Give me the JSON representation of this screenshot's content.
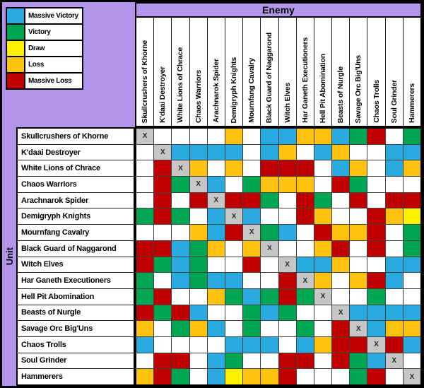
{
  "titles": {
    "enemy_axis": "Enemy",
    "unit_axis": "Unit"
  },
  "legend": [
    {
      "label": "Massive Victory",
      "code": "MV"
    },
    {
      "label": "Victory",
      "code": "V"
    },
    {
      "label": "Draw",
      "code": "D"
    },
    {
      "label": "Loss",
      "code": "L"
    },
    {
      "label": "Massive Loss",
      "code": "ML"
    }
  ],
  "colors": {
    "MV": "#29abe2",
    "V": "#00a651",
    "D": "#fff200",
    "L": "#ffc20e",
    "ML": "#c00000",
    "X": "#c6c6c6",
    "NONE": "#ffffff",
    "background": "#b495eb",
    "grid_line": "#404040"
  },
  "diagonal_marker": "X",
  "chart_data": {
    "type": "heatmap",
    "title": "Unit vs Enemy matchup results",
    "x_label": "Enemy",
    "y_label": "Unit",
    "legend_position": "top-left",
    "value_meanings": {
      "MV": "Massive Victory",
      "V": "Victory",
      "D": "Draw",
      "L": "Loss",
      "ML": "Massive Loss",
      "X": "same unit (diagonal)",
      "": "no result shown"
    },
    "columns": [
      "Skullcrushers of Khorne",
      "K'daai Destroyer",
      "White Lions of Chrace",
      "Chaos Warriors",
      "Arachnarok Spider",
      "Demigryph Knights",
      "Mournfang Cavalry",
      "Black Guard of Naggarond",
      "Witch Elves",
      "Har Ganeth Executioners",
      "Hell Pit Abomination",
      "Beasts of Nurgle",
      "Savage Orc Big'Uns",
      "Chaos Trolls",
      "Soul Grinder",
      "Hammerers"
    ],
    "rows": [
      "Skullcrushers of Khorne",
      "K'daai Destroyer",
      "White Lions of Chrace",
      "Chaos Warriors",
      "Arachnarok Spider",
      "Demigryph Knights",
      "Mournfang Cavalry",
      "Black Guard of Naggarond",
      "Witch Elves",
      "Har Ganeth Executioners",
      "Hell Pit Abomination",
      "Beasts of Nurgle",
      "Savage Orc Big'Uns",
      "Chaos Trolls",
      "Soul Grinder",
      "Hammerers"
    ],
    "values": [
      [
        "X",
        "",
        "",
        "",
        "",
        "L",
        "",
        "MV",
        "MV",
        "L",
        "L",
        "MV",
        "V",
        "ML",
        "",
        "V"
      ],
      [
        "",
        "X",
        "MV",
        "MV",
        "MV",
        "MV",
        "",
        "MV",
        "L",
        "",
        "MV",
        "L",
        "",
        "",
        "MV",
        "MV"
      ],
      [
        "",
        "ML",
        "X",
        "L",
        "",
        "L",
        "",
        "ML",
        "ML",
        "ML",
        "",
        "MV",
        "L",
        "",
        "MV",
        "L"
      ],
      [
        "",
        "ML",
        "V",
        "X",
        "MV",
        "",
        "V",
        "L",
        "L",
        "L",
        "",
        "ML",
        "V",
        "",
        "",
        ""
      ],
      [
        "",
        "ML",
        "",
        "ML",
        "X",
        "ML",
        "ML",
        "V",
        "",
        "ML",
        "V",
        "",
        "ML",
        "",
        "ML",
        "ML"
      ],
      [
        "V",
        "ML",
        "V",
        "",
        "MV",
        "X",
        "MV",
        "",
        "",
        "ML",
        "L",
        "",
        "",
        "ML",
        "L",
        "D"
      ],
      [
        "",
        "",
        "",
        "L",
        "MV",
        "ML",
        "X",
        "V",
        "MV",
        "",
        "ML",
        "L",
        "L",
        "ML",
        "",
        "V"
      ],
      [
        "ML",
        "ML",
        "MV",
        "V",
        "L",
        "",
        "L",
        "X",
        "",
        "",
        "L",
        "ML",
        "",
        "ML",
        "",
        "V"
      ],
      [
        "ML",
        "V",
        "MV",
        "V",
        "",
        "",
        "ML",
        "",
        "X",
        "MV",
        "MV",
        "L",
        "",
        "",
        "MV",
        "MV"
      ],
      [
        "V",
        "",
        "MV",
        "V",
        "MV",
        "MV",
        "",
        "",
        "ML",
        "X",
        "L",
        "",
        "L",
        "ML",
        "MV",
        ""
      ],
      [
        "V",
        "ML",
        "",
        "",
        "L",
        "V",
        "MV",
        "V",
        "ML",
        "V",
        "X",
        "",
        "",
        "V",
        "",
        ""
      ],
      [
        "ML",
        "V",
        "ML",
        "MV",
        "",
        "",
        "V",
        "MV",
        "V",
        "",
        "",
        "X",
        "MV",
        "MV",
        "MV",
        "MV"
      ],
      [
        "L",
        "",
        "V",
        "L",
        "MV",
        "",
        "V",
        "",
        "",
        "V",
        "",
        "ML",
        "X",
        "MV",
        "L",
        "L"
      ],
      [
        "MV",
        "",
        "",
        "",
        "",
        "MV",
        "MV",
        "MV",
        "",
        "MV",
        "L",
        "ML",
        "ML",
        "X",
        "ML",
        "MV"
      ],
      [
        "",
        "ML",
        "ML",
        "",
        "MV",
        "V",
        "",
        "",
        "ML",
        "ML",
        "",
        "ML",
        "V",
        "MV",
        "X",
        ""
      ],
      [
        "L",
        "ML",
        "V",
        "",
        "MV",
        "D",
        "L",
        "L",
        "ML",
        "",
        "",
        "",
        "V",
        "ML",
        "",
        "X"
      ]
    ]
  }
}
